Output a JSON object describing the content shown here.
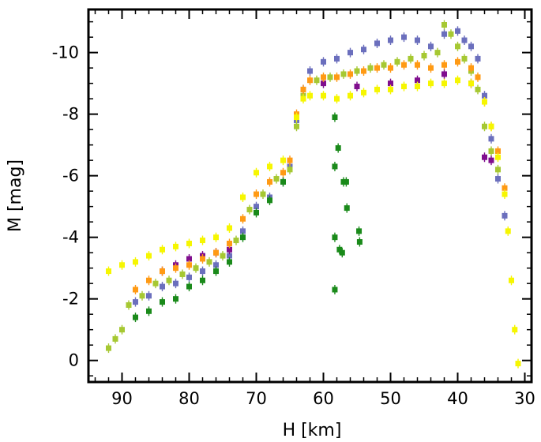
{
  "chart_data": {
    "type": "scatter",
    "title": "",
    "xlabel": "H [km]",
    "ylabel": "M [mag]",
    "x_inverted": true,
    "y_inverted": true,
    "xlim": [
      95,
      29
    ],
    "ylim": [
      0.7,
      -11.4
    ],
    "x_ticks": [
      90,
      80,
      70,
      60,
      50,
      40,
      30
    ],
    "y_ticks": [
      0,
      -2,
      -4,
      -6,
      -8,
      -10
    ],
    "grid": false,
    "legend": "none",
    "series": [
      {
        "color": "#6b6fbd",
        "points": [
          [
            88,
            -1.9
          ],
          [
            86,
            -2.1
          ],
          [
            84,
            -2.4
          ],
          [
            82,
            -2.5
          ],
          [
            80,
            -2.7
          ],
          [
            78,
            -2.9
          ],
          [
            76,
            -3.1
          ],
          [
            74,
            -3.4
          ],
          [
            72,
            -4.2
          ],
          [
            70,
            -5.0
          ],
          [
            68,
            -5.3
          ],
          [
            66,
            -5.8
          ],
          [
            65,
            -6.3
          ],
          [
            64,
            -7.8
          ],
          [
            63,
            -8.8
          ],
          [
            62,
            -9.4
          ],
          [
            60,
            -9.7
          ],
          [
            58,
            -9.8
          ],
          [
            56,
            -10.0
          ],
          [
            54,
            -10.1
          ],
          [
            52,
            -10.3
          ],
          [
            50,
            -10.4
          ],
          [
            48,
            -10.5
          ],
          [
            46,
            -10.4
          ],
          [
            44,
            -10.2
          ],
          [
            42,
            -10.6
          ],
          [
            40,
            -10.7
          ],
          [
            39,
            -10.4
          ],
          [
            38,
            -10.2
          ],
          [
            37,
            -9.8
          ],
          [
            36,
            -8.6
          ],
          [
            35,
            -7.2
          ],
          [
            34,
            -5.9
          ],
          [
            33,
            -4.7
          ]
        ]
      },
      {
        "color": "#a6c832",
        "points": [
          [
            92,
            -0.4
          ],
          [
            91,
            -0.7
          ],
          [
            90,
            -1.0
          ],
          [
            89,
            -1.8
          ],
          [
            87,
            -2.1
          ],
          [
            85,
            -2.5
          ],
          [
            83,
            -2.6
          ],
          [
            81,
            -2.8
          ],
          [
            79,
            -3.0
          ],
          [
            77,
            -3.2
          ],
          [
            75,
            -3.4
          ],
          [
            73,
            -3.9
          ],
          [
            71,
            -4.9
          ],
          [
            69,
            -5.4
          ],
          [
            67,
            -5.9
          ],
          [
            65,
            -6.2
          ],
          [
            64,
            -7.6
          ],
          [
            63,
            -8.6
          ],
          [
            61,
            -9.1
          ],
          [
            59,
            -9.2
          ],
          [
            57,
            -9.3
          ],
          [
            55,
            -9.4
          ],
          [
            53,
            -9.5
          ],
          [
            51,
            -9.6
          ],
          [
            49,
            -9.7
          ],
          [
            47,
            -9.8
          ],
          [
            45,
            -9.9
          ],
          [
            43,
            -10.0
          ],
          [
            42,
            -10.9
          ],
          [
            41,
            -10.6
          ],
          [
            40,
            -10.2
          ],
          [
            39,
            -9.8
          ],
          [
            38,
            -9.4
          ],
          [
            37,
            -8.8
          ],
          [
            36,
            -7.6
          ],
          [
            35,
            -6.8
          ],
          [
            34,
            -6.2
          ]
        ]
      },
      {
        "color": "#800e8e",
        "points": [
          [
            84,
            -2.9
          ],
          [
            82,
            -3.1
          ],
          [
            80,
            -3.3
          ],
          [
            78,
            -3.4
          ],
          [
            76,
            -3.5
          ],
          [
            74,
            -3.6
          ],
          [
            60,
            -9.0
          ],
          [
            55,
            -8.9
          ],
          [
            50,
            -9.0
          ],
          [
            46,
            -9.1
          ],
          [
            42,
            -9.3
          ],
          [
            38,
            -9.0
          ],
          [
            36,
            -6.6
          ],
          [
            35,
            -6.5
          ]
        ]
      },
      {
        "color": "#1a8a1a",
        "points": [
          [
            88,
            -1.4
          ],
          [
            86,
            -1.6
          ],
          [
            84,
            -1.9
          ],
          [
            82,
            -2.0
          ],
          [
            80,
            -2.4
          ],
          [
            78,
            -2.6
          ],
          [
            76,
            -2.9
          ],
          [
            74,
            -3.2
          ],
          [
            72,
            -4.0
          ],
          [
            70,
            -4.8
          ],
          [
            68,
            -5.2
          ],
          [
            66,
            -5.8
          ],
          [
            58.3,
            -7.9
          ],
          [
            58.3,
            -6.3
          ],
          [
            58.3,
            -4.0
          ],
          [
            58.3,
            -2.3
          ],
          [
            57.8,
            -6.9
          ],
          [
            57.6,
            -3.6
          ],
          [
            57.2,
            -3.5
          ],
          [
            57.0,
            -5.8
          ],
          [
            56.6,
            -5.8
          ],
          [
            56.5,
            -4.95
          ],
          [
            54.7,
            -4.2
          ],
          [
            54.6,
            -3.85
          ]
        ]
      },
      {
        "color": "#ff9a14",
        "points": [
          [
            88,
            -2.3
          ],
          [
            86,
            -2.6
          ],
          [
            84,
            -2.9
          ],
          [
            82,
            -3.0
          ],
          [
            80,
            -3.1
          ],
          [
            78,
            -3.3
          ],
          [
            76,
            -3.5
          ],
          [
            74,
            -3.8
          ],
          [
            72,
            -4.6
          ],
          [
            70,
            -5.4
          ],
          [
            68,
            -5.8
          ],
          [
            66,
            -6.1
          ],
          [
            65,
            -6.5
          ],
          [
            64,
            -8.0
          ],
          [
            63,
            -8.8
          ],
          [
            62,
            -9.1
          ],
          [
            60,
            -9.2
          ],
          [
            58,
            -9.2
          ],
          [
            56,
            -9.3
          ],
          [
            54,
            -9.4
          ],
          [
            52,
            -9.5
          ],
          [
            50,
            -9.5
          ],
          [
            48,
            -9.6
          ],
          [
            46,
            -9.6
          ],
          [
            44,
            -9.5
          ],
          [
            42,
            -9.6
          ],
          [
            40,
            -9.7
          ],
          [
            38,
            -9.5
          ],
          [
            37,
            -9.2
          ],
          [
            36,
            -8.4
          ],
          [
            35,
            -7.6
          ],
          [
            34,
            -6.8
          ],
          [
            33,
            -5.6
          ]
        ]
      },
      {
        "color": "#f6f600",
        "points": [
          [
            92,
            -2.9
          ],
          [
            90,
            -3.1
          ],
          [
            88,
            -3.2
          ],
          [
            86,
            -3.4
          ],
          [
            84,
            -3.6
          ],
          [
            82,
            -3.7
          ],
          [
            80,
            -3.8
          ],
          [
            78,
            -3.9
          ],
          [
            76,
            -4.0
          ],
          [
            74,
            -4.3
          ],
          [
            72,
            -5.3
          ],
          [
            70,
            -6.1
          ],
          [
            68,
            -6.3
          ],
          [
            66,
            -6.5
          ],
          [
            64,
            -7.9
          ],
          [
            63,
            -8.5
          ],
          [
            62,
            -8.6
          ],
          [
            60,
            -8.6
          ],
          [
            58,
            -8.5
          ],
          [
            56,
            -8.6
          ],
          [
            54,
            -8.7
          ],
          [
            52,
            -8.8
          ],
          [
            50,
            -8.8
          ],
          [
            48,
            -8.9
          ],
          [
            46,
            -8.9
          ],
          [
            44,
            -9.0
          ],
          [
            42,
            -9.0
          ],
          [
            40,
            -9.1
          ],
          [
            38,
            -9.0
          ],
          [
            36,
            -8.4
          ],
          [
            35,
            -7.6
          ],
          [
            34,
            -6.6
          ],
          [
            33,
            -5.4
          ],
          [
            32.5,
            -4.2
          ],
          [
            32,
            -2.6
          ],
          [
            31.5,
            -1.0
          ],
          [
            31,
            0.1
          ]
        ]
      }
    ]
  }
}
